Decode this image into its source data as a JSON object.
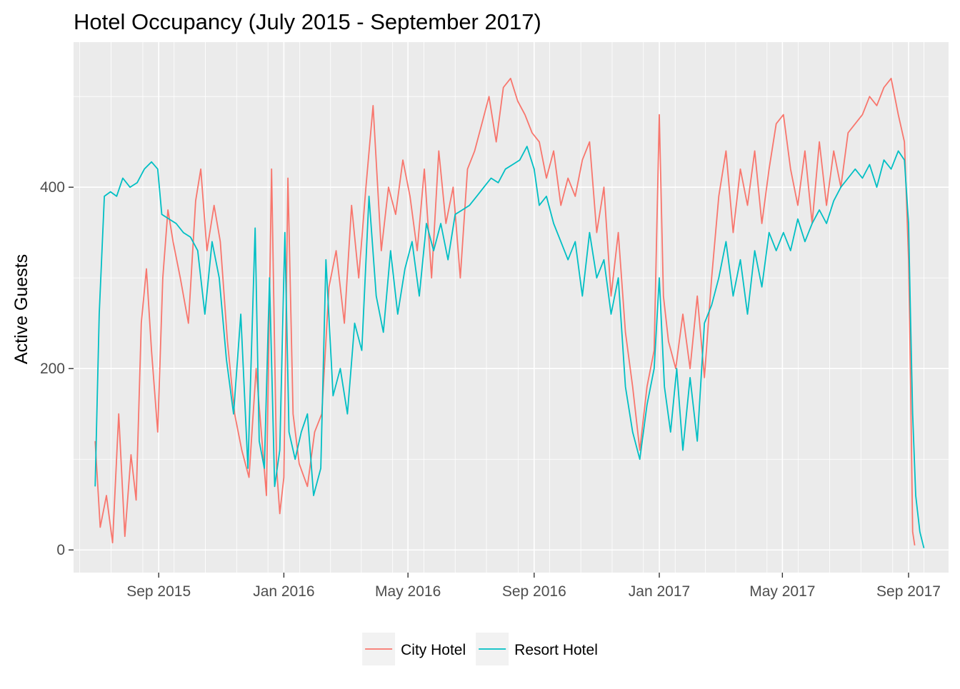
{
  "chart_data": {
    "type": "line",
    "title": "Hotel Occupancy (July 2015 - September 2017)",
    "xlabel": "",
    "ylabel": "Active Guests",
    "x_axis_type": "date",
    "xlim": [
      "2015-06-10",
      "2017-10-10"
    ],
    "ylim": [
      -25,
      560
    ],
    "x_ticks": [
      {
        "date": "2015-09-01",
        "label": "Sep 2015"
      },
      {
        "date": "2016-01-01",
        "label": "Jan 2016"
      },
      {
        "date": "2016-05-01",
        "label": "May 2016"
      },
      {
        "date": "2016-09-01",
        "label": "Sep 2016"
      },
      {
        "date": "2017-01-01",
        "label": "Jan 2017"
      },
      {
        "date": "2017-05-01",
        "label": "May 2017"
      },
      {
        "date": "2017-09-01",
        "label": "Sep 2017"
      }
    ],
    "y_ticks": [
      0,
      200,
      400
    ],
    "grid": true,
    "legend_position": "bottom",
    "series": [
      {
        "name": "City Hotel",
        "color": "#F8766D",
        "points": [
          [
            "2015-07-01",
            120
          ],
          [
            "2015-07-06",
            25
          ],
          [
            "2015-07-12",
            60
          ],
          [
            "2015-07-18",
            8
          ],
          [
            "2015-07-24",
            150
          ],
          [
            "2015-07-30",
            15
          ],
          [
            "2015-08-05",
            105
          ],
          [
            "2015-08-10",
            55
          ],
          [
            "2015-08-15",
            250
          ],
          [
            "2015-08-20",
            310
          ],
          [
            "2015-08-25",
            220
          ],
          [
            "2015-08-31",
            130
          ],
          [
            "2015-09-05",
            300
          ],
          [
            "2015-09-10",
            375
          ],
          [
            "2015-09-15",
            340
          ],
          [
            "2015-09-22",
            300
          ],
          [
            "2015-09-30",
            250
          ],
          [
            "2015-10-07",
            385
          ],
          [
            "2015-10-12",
            420
          ],
          [
            "2015-10-18",
            330
          ],
          [
            "2015-10-25",
            380
          ],
          [
            "2015-10-31",
            340
          ],
          [
            "2015-11-07",
            230
          ],
          [
            "2015-11-14",
            150
          ],
          [
            "2015-11-21",
            110
          ],
          [
            "2015-11-28",
            80
          ],
          [
            "2015-12-05",
            200
          ],
          [
            "2015-12-10",
            130
          ],
          [
            "2015-12-15",
            60
          ],
          [
            "2015-12-20",
            420
          ],
          [
            "2015-12-25",
            90
          ],
          [
            "2015-12-28",
            40
          ],
          [
            "2016-01-01",
            80
          ],
          [
            "2016-01-05",
            410
          ],
          [
            "2016-01-10",
            150
          ],
          [
            "2016-01-16",
            95
          ],
          [
            "2016-01-24",
            70
          ],
          [
            "2016-01-31",
            130
          ],
          [
            "2016-02-07",
            150
          ],
          [
            "2016-02-14",
            290
          ],
          [
            "2016-02-21",
            330
          ],
          [
            "2016-02-29",
            250
          ],
          [
            "2016-03-07",
            380
          ],
          [
            "2016-03-14",
            300
          ],
          [
            "2016-03-21",
            400
          ],
          [
            "2016-03-28",
            490
          ],
          [
            "2016-04-05",
            330
          ],
          [
            "2016-04-12",
            400
          ],
          [
            "2016-04-19",
            370
          ],
          [
            "2016-04-26",
            430
          ],
          [
            "2016-05-03",
            390
          ],
          [
            "2016-05-10",
            330
          ],
          [
            "2016-05-17",
            420
          ],
          [
            "2016-05-24",
            300
          ],
          [
            "2016-05-31",
            440
          ],
          [
            "2016-06-07",
            360
          ],
          [
            "2016-06-14",
            400
          ],
          [
            "2016-06-21",
            300
          ],
          [
            "2016-06-28",
            420
          ],
          [
            "2016-07-05",
            440
          ],
          [
            "2016-07-12",
            470
          ],
          [
            "2016-07-19",
            500
          ],
          [
            "2016-07-26",
            450
          ],
          [
            "2016-08-02",
            510
          ],
          [
            "2016-08-09",
            520
          ],
          [
            "2016-08-16",
            495
          ],
          [
            "2016-08-23",
            480
          ],
          [
            "2016-08-30",
            460
          ],
          [
            "2016-09-06",
            450
          ],
          [
            "2016-09-13",
            410
          ],
          [
            "2016-09-20",
            440
          ],
          [
            "2016-09-27",
            380
          ],
          [
            "2016-10-04",
            410
          ],
          [
            "2016-10-11",
            390
          ],
          [
            "2016-10-18",
            430
          ],
          [
            "2016-10-25",
            450
          ],
          [
            "2016-11-01",
            350
          ],
          [
            "2016-11-08",
            400
          ],
          [
            "2016-11-15",
            280
          ],
          [
            "2016-11-22",
            350
          ],
          [
            "2016-11-29",
            240
          ],
          [
            "2016-12-06",
            180
          ],
          [
            "2016-12-13",
            110
          ],
          [
            "2016-12-20",
            180
          ],
          [
            "2016-12-27",
            220
          ],
          [
            "2017-01-01",
            480
          ],
          [
            "2017-01-05",
            280
          ],
          [
            "2017-01-10",
            230
          ],
          [
            "2017-01-17",
            200
          ],
          [
            "2017-01-24",
            260
          ],
          [
            "2017-01-31",
            200
          ],
          [
            "2017-02-07",
            280
          ],
          [
            "2017-02-14",
            190
          ],
          [
            "2017-02-21",
            300
          ],
          [
            "2017-02-28",
            390
          ],
          [
            "2017-03-07",
            440
          ],
          [
            "2017-03-14",
            350
          ],
          [
            "2017-03-21",
            420
          ],
          [
            "2017-03-28",
            380
          ],
          [
            "2017-04-04",
            440
          ],
          [
            "2017-04-11",
            360
          ],
          [
            "2017-04-18",
            420
          ],
          [
            "2017-04-25",
            470
          ],
          [
            "2017-05-02",
            480
          ],
          [
            "2017-05-09",
            420
          ],
          [
            "2017-05-16",
            380
          ],
          [
            "2017-05-23",
            440
          ],
          [
            "2017-05-30",
            360
          ],
          [
            "2017-06-06",
            450
          ],
          [
            "2017-06-13",
            380
          ],
          [
            "2017-06-20",
            440
          ],
          [
            "2017-06-27",
            400
          ],
          [
            "2017-07-04",
            460
          ],
          [
            "2017-07-11",
            470
          ],
          [
            "2017-07-18",
            480
          ],
          [
            "2017-07-25",
            500
          ],
          [
            "2017-08-01",
            490
          ],
          [
            "2017-08-08",
            510
          ],
          [
            "2017-08-15",
            520
          ],
          [
            "2017-08-22",
            480
          ],
          [
            "2017-08-28",
            450
          ],
          [
            "2017-09-01",
            320
          ],
          [
            "2017-09-03",
            180
          ],
          [
            "2017-09-05",
            20
          ],
          [
            "2017-09-07",
            5
          ]
        ]
      },
      {
        "name": "Resort Hotel",
        "color": "#00BFC4",
        "points": [
          [
            "2015-07-01",
            70
          ],
          [
            "2015-07-05",
            260
          ],
          [
            "2015-07-10",
            390
          ],
          [
            "2015-07-16",
            395
          ],
          [
            "2015-07-22",
            390
          ],
          [
            "2015-07-28",
            410
          ],
          [
            "2015-08-04",
            400
          ],
          [
            "2015-08-11",
            405
          ],
          [
            "2015-08-18",
            420
          ],
          [
            "2015-08-25",
            428
          ],
          [
            "2015-08-31",
            420
          ],
          [
            "2015-09-04",
            370
          ],
          [
            "2015-09-11",
            365
          ],
          [
            "2015-09-18",
            360
          ],
          [
            "2015-09-25",
            350
          ],
          [
            "2015-10-02",
            345
          ],
          [
            "2015-10-09",
            330
          ],
          [
            "2015-10-16",
            260
          ],
          [
            "2015-10-23",
            340
          ],
          [
            "2015-10-30",
            300
          ],
          [
            "2015-11-06",
            210
          ],
          [
            "2015-11-13",
            150
          ],
          [
            "2015-11-20",
            260
          ],
          [
            "2015-11-27",
            90
          ],
          [
            "2015-12-04",
            355
          ],
          [
            "2015-12-08",
            120
          ],
          [
            "2015-12-13",
            90
          ],
          [
            "2015-12-18",
            300
          ],
          [
            "2015-12-23",
            70
          ],
          [
            "2015-12-28",
            110
          ],
          [
            "2016-01-02",
            350
          ],
          [
            "2016-01-06",
            130
          ],
          [
            "2016-01-12",
            100
          ],
          [
            "2016-01-18",
            130
          ],
          [
            "2016-01-24",
            150
          ],
          [
            "2016-01-30",
            60
          ],
          [
            "2016-02-06",
            90
          ],
          [
            "2016-02-11",
            320
          ],
          [
            "2016-02-18",
            170
          ],
          [
            "2016-02-25",
            200
          ],
          [
            "2016-03-03",
            150
          ],
          [
            "2016-03-10",
            250
          ],
          [
            "2016-03-17",
            220
          ],
          [
            "2016-03-24",
            390
          ],
          [
            "2016-03-31",
            280
          ],
          [
            "2016-04-07",
            240
          ],
          [
            "2016-04-14",
            330
          ],
          [
            "2016-04-21",
            260
          ],
          [
            "2016-04-28",
            310
          ],
          [
            "2016-05-05",
            340
          ],
          [
            "2016-05-12",
            280
          ],
          [
            "2016-05-19",
            360
          ],
          [
            "2016-05-26",
            330
          ],
          [
            "2016-06-02",
            360
          ],
          [
            "2016-06-09",
            320
          ],
          [
            "2016-06-16",
            370
          ],
          [
            "2016-06-23",
            375
          ],
          [
            "2016-06-30",
            380
          ],
          [
            "2016-07-07",
            390
          ],
          [
            "2016-07-14",
            400
          ],
          [
            "2016-07-21",
            410
          ],
          [
            "2016-07-28",
            405
          ],
          [
            "2016-08-04",
            420
          ],
          [
            "2016-08-11",
            425
          ],
          [
            "2016-08-18",
            430
          ],
          [
            "2016-08-25",
            445
          ],
          [
            "2016-09-01",
            420
          ],
          [
            "2016-09-06",
            380
          ],
          [
            "2016-09-13",
            390
          ],
          [
            "2016-09-20",
            360
          ],
          [
            "2016-09-27",
            340
          ],
          [
            "2016-10-04",
            320
          ],
          [
            "2016-10-11",
            340
          ],
          [
            "2016-10-18",
            280
          ],
          [
            "2016-10-25",
            350
          ],
          [
            "2016-11-01",
            300
          ],
          [
            "2016-11-08",
            320
          ],
          [
            "2016-11-15",
            260
          ],
          [
            "2016-11-22",
            300
          ],
          [
            "2016-11-29",
            180
          ],
          [
            "2016-12-06",
            130
          ],
          [
            "2016-12-13",
            100
          ],
          [
            "2016-12-20",
            160
          ],
          [
            "2016-12-27",
            200
          ],
          [
            "2017-01-01",
            300
          ],
          [
            "2017-01-06",
            180
          ],
          [
            "2017-01-12",
            130
          ],
          [
            "2017-01-18",
            200
          ],
          [
            "2017-01-24",
            110
          ],
          [
            "2017-01-31",
            190
          ],
          [
            "2017-02-07",
            120
          ],
          [
            "2017-02-14",
            250
          ],
          [
            "2017-02-21",
            270
          ],
          [
            "2017-02-28",
            300
          ],
          [
            "2017-03-07",
            340
          ],
          [
            "2017-03-14",
            280
          ],
          [
            "2017-03-21",
            320
          ],
          [
            "2017-03-28",
            260
          ],
          [
            "2017-04-04",
            330
          ],
          [
            "2017-04-11",
            290
          ],
          [
            "2017-04-18",
            350
          ],
          [
            "2017-04-25",
            330
          ],
          [
            "2017-05-02",
            350
          ],
          [
            "2017-05-09",
            330
          ],
          [
            "2017-05-16",
            365
          ],
          [
            "2017-05-23",
            340
          ],
          [
            "2017-05-30",
            360
          ],
          [
            "2017-06-06",
            375
          ],
          [
            "2017-06-13",
            360
          ],
          [
            "2017-06-20",
            385
          ],
          [
            "2017-06-27",
            400
          ],
          [
            "2017-07-04",
            410
          ],
          [
            "2017-07-11",
            420
          ],
          [
            "2017-07-18",
            410
          ],
          [
            "2017-07-25",
            425
          ],
          [
            "2017-08-01",
            400
          ],
          [
            "2017-08-08",
            430
          ],
          [
            "2017-08-15",
            420
          ],
          [
            "2017-08-22",
            440
          ],
          [
            "2017-08-28",
            430
          ],
          [
            "2017-09-01",
            360
          ],
          [
            "2017-09-03",
            250
          ],
          [
            "2017-09-05",
            150
          ],
          [
            "2017-09-08",
            60
          ],
          [
            "2017-09-12",
            20
          ],
          [
            "2017-09-16",
            2
          ]
        ]
      }
    ]
  }
}
